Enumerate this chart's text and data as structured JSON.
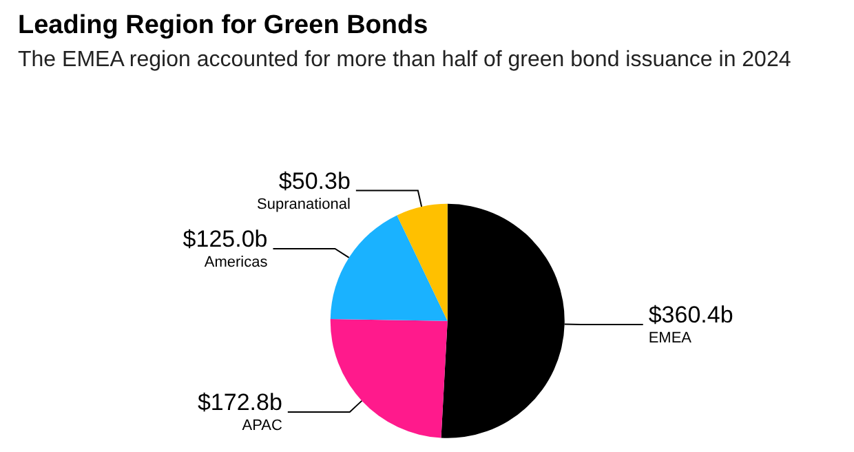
{
  "chart_data": {
    "type": "pie",
    "title": "Leading Region for Green Bonds",
    "subtitle": "The EMEA region accounted for more than half of green bond issuance in 2024",
    "categories": [
      "EMEA",
      "APAC",
      "Americas",
      "Supranational"
    ],
    "values": [
      360.4,
      172.8,
      125.0,
      50.3
    ],
    "value_labels": [
      "$360.4b",
      "$172.8b",
      "$125.0b",
      "$50.3b"
    ],
    "colors": [
      "#000000",
      "#ff1a8c",
      "#1ab2ff",
      "#ffc000"
    ],
    "legend": false
  }
}
